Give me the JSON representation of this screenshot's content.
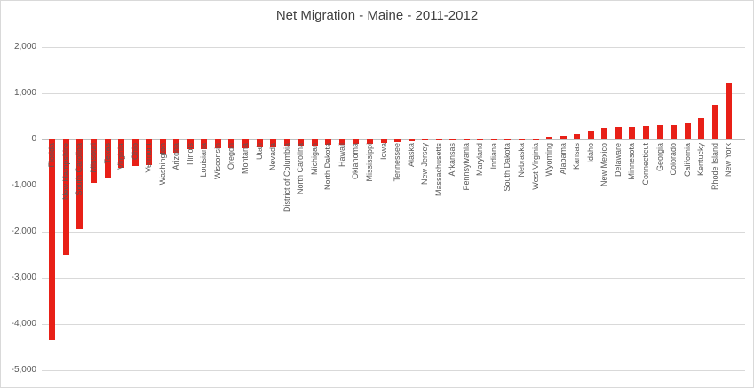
{
  "title": "Net Migration - Maine - 2011-2012",
  "colors": {
    "bar": "#e82017",
    "gridline": "#d9d9d9",
    "axis_line": "#bfbfbf",
    "tick_text": "#595959",
    "title_text": "#404040",
    "frame_border": "#d9d9d9",
    "background": "#ffffff"
  },
  "chart_data": {
    "type": "bar",
    "title": "Net Migration - Maine - 2011-2012",
    "xlabel": "",
    "ylabel": "",
    "ylim": [
      -5000,
      2000
    ],
    "ytick_step": 1000,
    "ytick_labels": [
      "2,000",
      "1,000",
      "0",
      "-1,000",
      "-2,000",
      "-3,000",
      "-4,000",
      "-5,000"
    ],
    "grid": true,
    "legend": false,
    "bar_color": "#e82017",
    "categories": [
      "Florida",
      "New Hampshire",
      "South Carolina",
      "Missouri",
      "Texas",
      "Virginia",
      "Ohio",
      "Vermont",
      "Washington",
      "Arizona",
      "Illinois",
      "Louisiana",
      "Wisconsin",
      "Oregon",
      "Montana",
      "Utah",
      "Nevada",
      "District of Columbia",
      "North Carolina",
      "Michigan",
      "North Dakota",
      "Hawaii",
      "Oklahoma",
      "Mississippi",
      "Iowa",
      "Tennessee",
      "Alaska",
      "New Jersey",
      "Massachusetts",
      "Arkansas",
      "Pennsylvania",
      "Maryland",
      "Indiana",
      "South Dakota",
      "Nebraska",
      "West Virginia",
      "Wyoming",
      "Alabama",
      "Kansas",
      "Idaho",
      "New Mexico",
      "Delaware",
      "Minnesota",
      "Connecticut",
      "Georgia",
      "Colorado",
      "California",
      "Kentucky",
      "Rhode Island",
      "New York"
    ],
    "values": [
      -4350,
      -2500,
      -1950,
      -950,
      -860,
      -620,
      -590,
      -560,
      -330,
      -290,
      -230,
      -220,
      -210,
      -200,
      -195,
      -185,
      -175,
      -165,
      -150,
      -140,
      -130,
      -120,
      -110,
      -100,
      -85,
      -70,
      -40,
      -35,
      -30,
      -25,
      -20,
      -15,
      -10,
      -8,
      -5,
      -3,
      50,
      60,
      100,
      160,
      240,
      255,
      265,
      275,
      290,
      300,
      340,
      460,
      750,
      1220
    ]
  }
}
